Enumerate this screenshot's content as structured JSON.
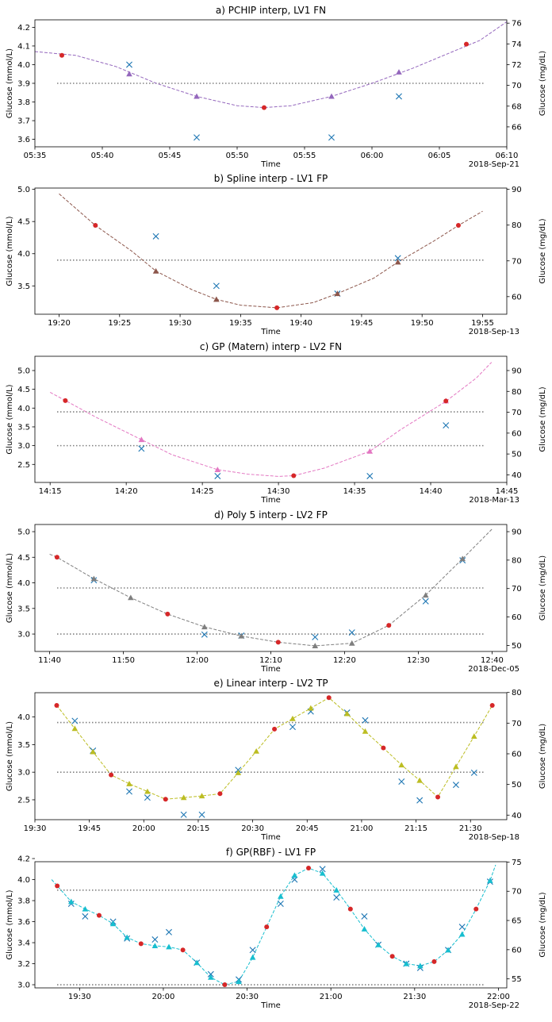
{
  "chart_data": [
    {
      "type": "line",
      "title": "a) PCHIP interp, LV1 FN",
      "xlabel": "Time",
      "ylabel": "Glucose (mmol/L)",
      "ylabel_right": "Glucose (mg/dL)",
      "date_label": "2018-Sep-21",
      "xlim": [
        "05:35",
        "06:10"
      ],
      "ylim": [
        3.56,
        4.24
      ],
      "yticks": [
        3.6,
        3.7,
        3.8,
        3.9,
        4.0,
        4.1,
        4.2
      ],
      "xticks": [
        "05:35",
        "05:40",
        "05:45",
        "05:50",
        "05:55",
        "06:00",
        "06:05",
        "06:10"
      ],
      "right_ticks": [
        66,
        68,
        70,
        72,
        74,
        76
      ],
      "threshold_lines": [
        3.9
      ],
      "color": "#9467bd",
      "curve": [
        [
          "05:35",
          4.07
        ],
        [
          "05:38",
          4.05
        ],
        [
          "05:41",
          3.99
        ],
        [
          "05:44",
          3.9
        ],
        [
          "05:47",
          3.83
        ],
        [
          "05:50",
          3.78
        ],
        [
          "05:52",
          3.77
        ],
        [
          "05:54",
          3.78
        ],
        [
          "05:57",
          3.83
        ],
        [
          "06:00",
          3.9
        ],
        [
          "06:03",
          3.98
        ],
        [
          "06:06",
          4.07
        ],
        [
          "06:08",
          4.13
        ],
        [
          "06:10",
          4.23
        ]
      ],
      "measured_points": [
        [
          "05:37",
          4.05
        ],
        [
          "05:52",
          3.77
        ],
        [
          "06:07",
          4.11
        ]
      ],
      "interpolated_points": [
        [
          "05:42",
          3.95
        ],
        [
          "05:47",
          3.83
        ],
        [
          "05:57",
          3.83
        ],
        [
          "06:02",
          3.96
        ]
      ],
      "reference_points": [
        [
          "05:42",
          4.0
        ],
        [
          "05:47",
          3.61
        ],
        [
          "05:57",
          3.61
        ],
        [
          "06:02",
          3.83
        ]
      ]
    },
    {
      "type": "line",
      "title": "b) Spline interp - LV1 FP",
      "xlabel": "Time",
      "ylabel": "Glucose (mmol/L)",
      "ylabel_right": "Glucose (mg/dL)",
      "date_label": "2018-Sep-13",
      "xlim": [
        "19:18",
        "19:57"
      ],
      "ylim": [
        3.06,
        5.02
      ],
      "yticks": [
        3.5,
        4.0,
        4.5,
        5.0
      ],
      "xticks": [
        "19:20",
        "19:25",
        "19:30",
        "19:35",
        "19:40",
        "19:45",
        "19:50",
        "19:55"
      ],
      "right_ticks": [
        60,
        70,
        80,
        90
      ],
      "threshold_lines": [
        3.9
      ],
      "color": "#8c564b",
      "curve": [
        [
          "19:20",
          4.93
        ],
        [
          "19:23",
          4.44
        ],
        [
          "19:26",
          4.04
        ],
        [
          "19:28",
          3.73
        ],
        [
          "19:31",
          3.44
        ],
        [
          "19:33",
          3.29
        ],
        [
          "19:35",
          3.2
        ],
        [
          "19:38",
          3.16
        ],
        [
          "19:41",
          3.24
        ],
        [
          "19:43",
          3.38
        ],
        [
          "19:46",
          3.62
        ],
        [
          "19:48",
          3.87
        ],
        [
          "19:51",
          4.2
        ],
        [
          "19:53",
          4.44
        ],
        [
          "19:55",
          4.66
        ]
      ],
      "measured_points": [
        [
          "19:23",
          4.44
        ],
        [
          "19:38",
          3.16
        ],
        [
          "19:53",
          4.44
        ]
      ],
      "interpolated_points": [
        [
          "19:28",
          3.73
        ],
        [
          "19:33",
          3.29
        ],
        [
          "19:43",
          3.38
        ],
        [
          "19:48",
          3.87
        ]
      ],
      "reference_points": [
        [
          "19:28",
          4.27
        ],
        [
          "19:33",
          3.5
        ],
        [
          "19:43",
          3.38
        ],
        [
          "19:48",
          3.93
        ]
      ]
    },
    {
      "type": "line",
      "title": "c) GP (Matern) interp - LV2 FN",
      "xlabel": "Time",
      "ylabel": "Glucose (mmol/L)",
      "ylabel_right": "Glucose (mg/dL)",
      "date_label": "2018-Mar-13",
      "xlim": [
        "14:14",
        "14:45"
      ],
      "ylim": [
        2.02,
        5.38
      ],
      "yticks": [
        2.5,
        3.0,
        3.5,
        4.0,
        4.5,
        5.0
      ],
      "xticks": [
        "14:15",
        "14:20",
        "14:25",
        "14:30",
        "14:35",
        "14:40",
        "14:45"
      ],
      "right_ticks": [
        40,
        50,
        60,
        70,
        80,
        90
      ],
      "threshold_lines": [
        3.9,
        3.0
      ],
      "color": "#e377c2",
      "curve": [
        [
          "14:15",
          4.42
        ],
        [
          "14:16",
          4.2
        ],
        [
          "14:18",
          3.76
        ],
        [
          "14:21",
          3.16
        ],
        [
          "14:23",
          2.76
        ],
        [
          "14:26",
          2.36
        ],
        [
          "14:28",
          2.24
        ],
        [
          "14:30",
          2.18
        ],
        [
          "14:31",
          2.2
        ],
        [
          "14:33",
          2.4
        ],
        [
          "14:36",
          2.85
        ],
        [
          "14:38",
          3.42
        ],
        [
          "14:41",
          4.18
        ],
        [
          "14:43",
          4.8
        ],
        [
          "14:44",
          5.22
        ]
      ],
      "measured_points": [
        [
          "14:16",
          4.2
        ],
        [
          "14:31",
          2.2
        ],
        [
          "14:41",
          4.19
        ]
      ],
      "interpolated_points": [
        [
          "14:21",
          3.16
        ],
        [
          "14:26",
          2.36
        ],
        [
          "14:36",
          2.85
        ],
        [
          "14:41",
          4.19
        ]
      ],
      "reference_points": [
        [
          "14:21",
          2.92
        ],
        [
          "14:26",
          2.19
        ],
        [
          "14:36",
          2.19
        ],
        [
          "14:41",
          3.54
        ]
      ]
    },
    {
      "type": "line",
      "title": "d) Poly 5 interp - LV2 FP",
      "xlabel": "Time",
      "ylabel": "Glucose (mmol/L)",
      "ylabel_right": "Glucose (mg/dL)",
      "date_label": "2018-Dec-05",
      "xlim": [
        "11:38",
        "12:42"
      ],
      "ylim": [
        2.66,
        5.14
      ],
      "yticks": [
        3.0,
        3.5,
        4.0,
        4.5,
        5.0
      ],
      "xticks": [
        "11:40",
        "11:50",
        "12:00",
        "12:10",
        "12:20",
        "12:30",
        "12:40"
      ],
      "right_ticks": [
        50,
        60,
        70,
        80,
        90
      ],
      "threshold_lines": [
        3.9,
        3.0
      ],
      "color": "#7f7f7f",
      "curve": [
        [
          "11:40",
          4.56
        ],
        [
          "11:41",
          4.5
        ],
        [
          "11:46",
          4.08
        ],
        [
          "11:51",
          3.71
        ],
        [
          "11:56",
          3.39
        ],
        [
          "12:01",
          3.14
        ],
        [
          "12:06",
          2.96
        ],
        [
          "12:11",
          2.84
        ],
        [
          "12:16",
          2.77
        ],
        [
          "12:21",
          2.82
        ],
        [
          "12:26",
          3.17
        ],
        [
          "12:31",
          3.76
        ],
        [
          "12:36",
          4.47
        ],
        [
          "12:40",
          5.05
        ]
      ],
      "measured_points": [
        [
          "11:41",
          4.5
        ],
        [
          "11:56",
          3.39
        ],
        [
          "12:11",
          2.84
        ],
        [
          "12:26",
          3.17
        ]
      ],
      "interpolated_points": [
        [
          "11:46",
          4.08
        ],
        [
          "11:51",
          3.71
        ],
        [
          "12:01",
          3.14
        ],
        [
          "12:06",
          2.96
        ],
        [
          "12:16",
          2.77
        ],
        [
          "12:21",
          2.82
        ],
        [
          "12:31",
          3.76
        ],
        [
          "12:36",
          4.47
        ]
      ],
      "reference_points": [
        [
          "11:46",
          4.05
        ],
        [
          "12:01",
          2.99
        ],
        [
          "12:06",
          2.97
        ],
        [
          "12:16",
          2.94
        ],
        [
          "12:21",
          3.03
        ],
        [
          "12:31",
          3.64
        ],
        [
          "12:36",
          4.44
        ]
      ]
    },
    {
      "type": "line",
      "title": "e) Linear interp - LV2 TP",
      "xlabel": "Time",
      "ylabel": "Glucose (mmol/L)",
      "ylabel_right": "Glucose (mg/dL)",
      "date_label": "2018-Sep-18",
      "xlim": [
        "19:30",
        "21:40"
      ],
      "ylim": [
        2.14,
        4.44
      ],
      "yticks": [
        2.5,
        3.0,
        3.5,
        4.0
      ],
      "xticks": [
        "19:30",
        "19:45",
        "20:00",
        "20:15",
        "20:30",
        "20:45",
        "21:00",
        "21:15",
        "21:30"
      ],
      "right_ticks": [
        40,
        50,
        60,
        70,
        80
      ],
      "threshold_lines": [
        3.9,
        3.0
      ],
      "color": "#bcbd22",
      "curve": [
        [
          "19:36",
          4.21
        ],
        [
          "19:41",
          3.79
        ],
        [
          "19:46",
          3.37
        ],
        [
          "19:51",
          2.95
        ],
        [
          "19:56",
          2.79
        ],
        [
          "20:01",
          2.65
        ],
        [
          "20:06",
          2.51
        ],
        [
          "20:11",
          2.54
        ],
        [
          "20:16",
          2.57
        ],
        [
          "20:21",
          2.61
        ],
        [
          "20:26",
          2.99
        ],
        [
          "20:31",
          3.38
        ],
        [
          "20:36",
          3.78
        ],
        [
          "20:41",
          3.97
        ],
        [
          "20:46",
          4.16
        ],
        [
          "20:51",
          4.35
        ],
        [
          "20:56",
          4.06
        ],
        [
          "21:01",
          3.74
        ],
        [
          "21:06",
          3.44
        ],
        [
          "21:11",
          3.13
        ],
        [
          "21:16",
          2.85
        ],
        [
          "21:21",
          2.55
        ],
        [
          "21:26",
          3.1
        ],
        [
          "21:31",
          3.65
        ],
        [
          "21:36",
          4.21
        ]
      ],
      "measured_points": [
        [
          "19:36",
          4.21
        ],
        [
          "19:51",
          2.95
        ],
        [
          "20:06",
          2.51
        ],
        [
          "20:21",
          2.61
        ],
        [
          "20:36",
          3.78
        ],
        [
          "20:51",
          4.35
        ],
        [
          "21:06",
          3.44
        ],
        [
          "21:21",
          2.55
        ],
        [
          "21:36",
          4.21
        ]
      ],
      "interpolated_points": [
        [
          "19:41",
          3.79
        ],
        [
          "19:46",
          3.37
        ],
        [
          "19:56",
          2.79
        ],
        [
          "20:01",
          2.65
        ],
        [
          "20:11",
          2.54
        ],
        [
          "20:16",
          2.57
        ],
        [
          "20:26",
          2.99
        ],
        [
          "20:31",
          3.38
        ],
        [
          "20:41",
          3.97
        ],
        [
          "20:46",
          4.16
        ],
        [
          "20:56",
          4.06
        ],
        [
          "21:01",
          3.74
        ],
        [
          "21:11",
          3.13
        ],
        [
          "21:16",
          2.85
        ],
        [
          "21:26",
          3.1
        ],
        [
          "21:31",
          3.65
        ]
      ],
      "reference_points": [
        [
          "19:41",
          3.93
        ],
        [
          "19:46",
          3.39
        ],
        [
          "19:56",
          2.65
        ],
        [
          "20:01",
          2.54
        ],
        [
          "20:11",
          2.23
        ],
        [
          "20:16",
          2.23
        ],
        [
          "20:26",
          3.04
        ],
        [
          "20:41",
          3.82
        ],
        [
          "20:46",
          4.1
        ],
        [
          "20:56",
          4.08
        ],
        [
          "21:01",
          3.94
        ],
        [
          "21:11",
          2.83
        ],
        [
          "21:16",
          2.49
        ],
        [
          "21:26",
          2.77
        ],
        [
          "21:31",
          2.99
        ]
      ]
    },
    {
      "type": "line",
      "title": "f) GP(RBF) - LV1 FP",
      "xlabel": "Time",
      "ylabel": "Glucose (mmol/L)",
      "ylabel_right": "Glucose (mg/dL)",
      "date_label": "2018-Sep-22",
      "xlim": [
        "19:14",
        "22:03"
      ],
      "ylim": [
        2.97,
        4.17
      ],
      "yticks": [
        3.0,
        3.2,
        3.4,
        3.6,
        3.8,
        4.0,
        4.2
      ],
      "xticks": [
        "19:30",
        "20:00",
        "20:30",
        "21:00",
        "21:30",
        "22:00"
      ],
      "right_ticks": [
        55,
        60,
        65,
        70,
        75
      ],
      "threshold_lines": [
        3.9,
        3.0
      ],
      "color": "#17becf",
      "curve": [
        [
          "19:20",
          4.0
        ],
        [
          "19:22",
          3.94
        ],
        [
          "19:27",
          3.79
        ],
        [
          "19:32",
          3.72
        ],
        [
          "19:37",
          3.66
        ],
        [
          "19:42",
          3.58
        ],
        [
          "19:47",
          3.45
        ],
        [
          "19:52",
          3.39
        ],
        [
          "19:57",
          3.37
        ],
        [
          "20:02",
          3.36
        ],
        [
          "20:07",
          3.33
        ],
        [
          "20:12",
          3.21
        ],
        [
          "20:17",
          3.07
        ],
        [
          "20:22",
          3.0
        ],
        [
          "20:27",
          3.03
        ],
        [
          "20:32",
          3.26
        ],
        [
          "20:37",
          3.55
        ],
        [
          "20:42",
          3.84
        ],
        [
          "20:47",
          4.04
        ],
        [
          "20:52",
          4.11
        ],
        [
          "20:57",
          4.06
        ],
        [
          "21:02",
          3.9
        ],
        [
          "21:07",
          3.72
        ],
        [
          "21:12",
          3.53
        ],
        [
          "21:17",
          3.38
        ],
        [
          "21:22",
          3.27
        ],
        [
          "21:27",
          3.2
        ],
        [
          "21:32",
          3.18
        ],
        [
          "21:37",
          3.22
        ],
        [
          "21:42",
          3.33
        ],
        [
          "21:47",
          3.48
        ],
        [
          "21:52",
          3.72
        ],
        [
          "21:57",
          3.99
        ],
        [
          "21:59",
          4.14
        ]
      ],
      "measured_points": [
        [
          "19:22",
          3.94
        ],
        [
          "19:37",
          3.66
        ],
        [
          "19:52",
          3.39
        ],
        [
          "20:07",
          3.33
        ],
        [
          "20:22",
          3.0
        ],
        [
          "20:37",
          3.55
        ],
        [
          "20:52",
          4.11
        ],
        [
          "21:07",
          3.72
        ],
        [
          "21:22",
          3.27
        ],
        [
          "21:37",
          3.22
        ],
        [
          "21:52",
          3.72
        ]
      ],
      "interpolated_points": [
        [
          "19:27",
          3.79
        ],
        [
          "19:32",
          3.72
        ],
        [
          "19:42",
          3.58
        ],
        [
          "19:47",
          3.45
        ],
        [
          "19:57",
          3.37
        ],
        [
          "20:02",
          3.36
        ],
        [
          "20:12",
          3.21
        ],
        [
          "20:17",
          3.07
        ],
        [
          "20:27",
          3.03
        ],
        [
          "20:32",
          3.26
        ],
        [
          "20:42",
          3.84
        ],
        [
          "20:47",
          4.04
        ],
        [
          "20:57",
          4.06
        ],
        [
          "21:02",
          3.9
        ],
        [
          "21:12",
          3.53
        ],
        [
          "21:17",
          3.38
        ],
        [
          "21:27",
          3.2
        ],
        [
          "21:32",
          3.18
        ],
        [
          "21:42",
          3.33
        ],
        [
          "21:47",
          3.48
        ],
        [
          "21:57",
          3.99
        ]
      ],
      "reference_points": [
        [
          "19:27",
          3.77
        ],
        [
          "19:32",
          3.65
        ],
        [
          "19:42",
          3.6
        ],
        [
          "19:47",
          3.44
        ],
        [
          "19:57",
          3.43
        ],
        [
          "20:02",
          3.5
        ],
        [
          "20:12",
          3.21
        ],
        [
          "20:17",
          3.1
        ],
        [
          "20:27",
          3.05
        ],
        [
          "20:32",
          3.33
        ],
        [
          "20:42",
          3.77
        ],
        [
          "20:47",
          4.0
        ],
        [
          "20:57",
          4.1
        ],
        [
          "21:02",
          3.83
        ],
        [
          "21:12",
          3.65
        ],
        [
          "21:17",
          3.38
        ],
        [
          "21:27",
          3.2
        ],
        [
          "21:32",
          3.16
        ],
        [
          "21:42",
          3.33
        ],
        [
          "21:47",
          3.55
        ],
        [
          "21:57",
          3.98
        ]
      ]
    }
  ],
  "colors": {
    "measured": "#d62728",
    "reference": "#1f77b4",
    "threshold": "#808080"
  }
}
